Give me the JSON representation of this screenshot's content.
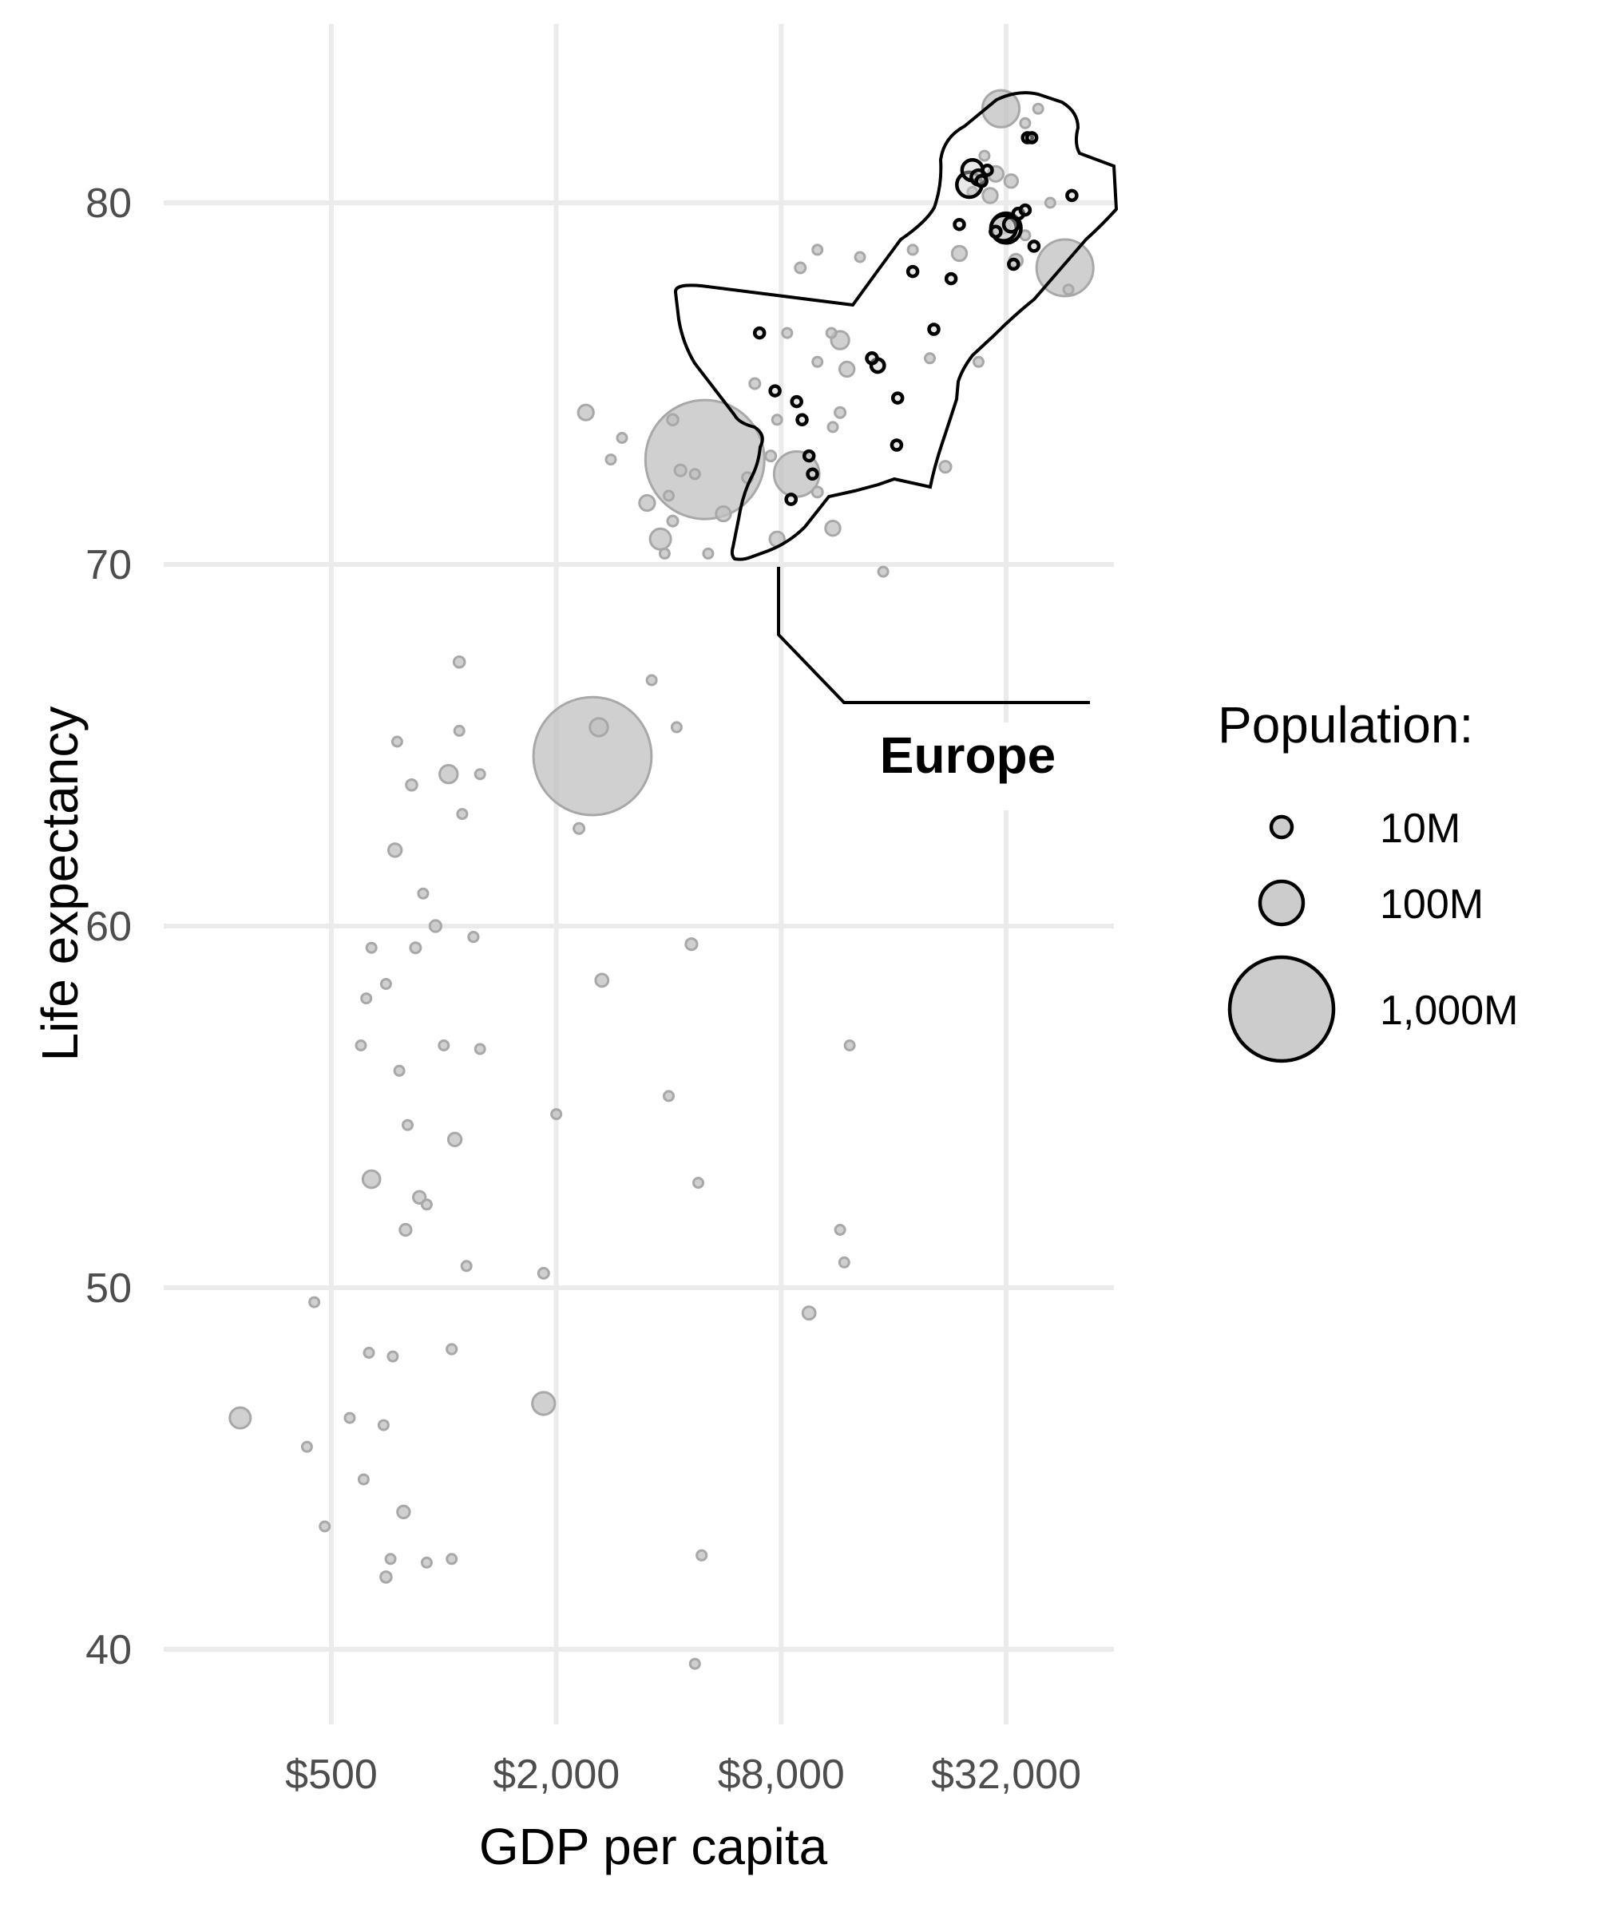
{
  "chart_data": {
    "type": "scatter",
    "xlabel": "GDP per capita",
    "ylabel": "Life expectancy",
    "x_scale": "log2",
    "xlim": [
      210,
      65000
    ],
    "ylim": [
      37.5,
      84.5
    ],
    "x_ticks": [
      500,
      2000,
      8000,
      32000
    ],
    "x_tick_labels": [
      "$500",
      "$2,000",
      "$8,000",
      "$32,000"
    ],
    "y_ticks": [
      40,
      50,
      60,
      70,
      80
    ],
    "y_tick_labels": [
      "40",
      "50",
      "60",
      "70",
      "80"
    ],
    "grid": true,
    "size_legend": {
      "title": "Population:",
      "entries": [
        {
          "label": "10M",
          "value": 10
        },
        {
          "label": "100M",
          "value": 100
        },
        {
          "label": "1,000M",
          "value": 1000
        }
      ]
    },
    "annotation": {
      "label": "Europe"
    },
    "colors": {
      "highlight_stroke": "#000000",
      "other_fill": "#c0c0c0",
      "grid": "#ebebeb"
    },
    "size_unit": "population_millions",
    "series": [
      {
        "highlighted": false,
        "points": [
          [
            285,
            46.4,
            40
          ],
          [
            450,
            49.6,
            5
          ],
          [
            430,
            45.6,
            4
          ],
          [
            480,
            43.4,
            6
          ],
          [
            560,
            46.4,
            3
          ],
          [
            640,
            59.4,
            3
          ],
          [
            620,
            58.0,
            4
          ],
          [
            600,
            56.7,
            6
          ],
          [
            700,
            58.4,
            4
          ],
          [
            760,
            56.0,
            7
          ],
          [
            800,
            54.5,
            7
          ],
          [
            860,
            52.5,
            14
          ],
          [
            900,
            52.3,
            7
          ],
          [
            790,
            51.6,
            12
          ],
          [
            640,
            53.0,
            28
          ],
          [
            690,
            46.2,
            6
          ],
          [
            630,
            48.2,
            8
          ],
          [
            730,
            48.1,
            5
          ],
          [
            610,
            44.7,
            5
          ],
          [
            780,
            43.8,
            14
          ],
          [
            720,
            42.5,
            6
          ],
          [
            700,
            42.0,
            11
          ],
          [
            900,
            42.4,
            6
          ],
          [
            1050,
            42.5,
            3
          ],
          [
            1150,
            50.6,
            8
          ],
          [
            1050,
            48.3,
            9
          ],
          [
            1850,
            46.8,
            47
          ],
          [
            1850,
            50.4,
            10
          ],
          [
            1250,
            56.6,
            5
          ],
          [
            1070,
            54.1,
            16
          ],
          [
            1000,
            56.7,
            6
          ],
          [
            950,
            60.0,
            12
          ],
          [
            1200,
            59.7,
            9
          ],
          [
            840,
            59.4,
            10
          ],
          [
            880,
            60.9,
            7
          ],
          [
            740,
            62.1,
            16
          ],
          [
            820,
            63.9,
            11
          ],
          [
            1030,
            64.2,
            30
          ],
          [
            1120,
            63.1,
            8
          ],
          [
            1250,
            64.2,
            5
          ],
          [
            1100,
            65.4,
            3
          ],
          [
            750,
            65.1,
            3
          ],
          [
            1100,
            67.3,
            11
          ],
          [
            2500,
            64.7,
            1300
          ],
          [
            2600,
            65.5,
            30
          ],
          [
            2300,
            62.7,
            10
          ],
          [
            2650,
            58.5,
            15
          ],
          [
            3600,
            66.8,
            5
          ],
          [
            4200,
            65.5,
            8
          ],
          [
            2000,
            54.8,
            3
          ],
          [
            4000,
            55.3,
            5
          ],
          [
            4800,
            52.9,
            5
          ],
          [
            4600,
            59.5,
            12
          ],
          [
            4700,
            39.6,
            4
          ],
          [
            4900,
            42.6,
            9
          ],
          [
            9500,
            49.3,
            15
          ],
          [
            12200,
            56.7,
            3
          ],
          [
            11500,
            51.6,
            3
          ],
          [
            11800,
            50.7,
            4
          ],
          [
            15000,
            69.8,
            3
          ],
          [
            2400,
            74.2,
            22
          ],
          [
            3000,
            73.5,
            6
          ],
          [
            2800,
            72.9,
            5
          ],
          [
            4100,
            74.0,
            11
          ],
          [
            5000,
            72.9,
            1320
          ],
          [
            4700,
            72.5,
            9
          ],
          [
            4300,
            72.6,
            12
          ],
          [
            4000,
            71.9,
            8
          ],
          [
            3500,
            71.7,
            22
          ],
          [
            4100,
            71.2,
            10
          ],
          [
            3800,
            70.7,
            40
          ],
          [
            3900,
            70.3,
            6
          ],
          [
            5100,
            70.3,
            5
          ],
          [
            5600,
            71.4,
            20
          ],
          [
            6500,
            72.4,
            10
          ],
          [
            7500,
            73.0,
            10
          ],
          [
            7800,
            74.0,
            6
          ],
          [
            6800,
            75.0,
            10
          ],
          [
            7800,
            70.7,
            20
          ],
          [
            8800,
            72.5,
            190
          ],
          [
            10000,
            72.0,
            10
          ],
          [
            11000,
            71.0,
            20
          ],
          [
            11000,
            73.8,
            8
          ],
          [
            11500,
            74.2,
            10
          ],
          [
            10000,
            75.6,
            5
          ],
          [
            8300,
            76.4,
            3
          ],
          [
            10900,
            76.4,
            5
          ],
          [
            11500,
            76.2,
            30
          ],
          [
            12000,
            75.4,
            20
          ],
          [
            9000,
            78.2,
            10
          ],
          [
            10000,
            78.7,
            4
          ],
          [
            13000,
            78.5,
            8
          ],
          [
            18000,
            78.7,
            4
          ],
          [
            24000,
            78.6,
            20
          ],
          [
            26000,
            80.3,
            4
          ],
          [
            20000,
            75.7,
            5
          ],
          [
            22000,
            72.7,
            12
          ],
          [
            27000,
            75.6,
            4
          ],
          [
            31000,
            82.6,
            127
          ],
          [
            36000,
            82.2,
            4
          ],
          [
            39000,
            82.6,
            5
          ],
          [
            28000,
            81.3,
            8
          ],
          [
            30000,
            80.8,
            22
          ],
          [
            33000,
            80.6,
            16
          ],
          [
            29000,
            80.2,
            20
          ],
          [
            31000,
            79.4,
            33
          ],
          [
            34000,
            78.4,
            16
          ],
          [
            36000,
            79.1,
            8
          ],
          [
            42000,
            80.0,
            5
          ],
          [
            46000,
            78.2,
            300
          ],
          [
            47000,
            77.6,
            4
          ]
        ]
      },
      {
        "highlighted": true,
        "points": [
          [
            7000,
            76.4,
            3
          ],
          [
            7700,
            74.8,
            3
          ],
          [
            8800,
            74.5,
            3
          ],
          [
            9100,
            74.0,
            4
          ],
          [
            9500,
            73.0,
            3
          ],
          [
            9700,
            72.5,
            5
          ],
          [
            8500,
            71.8,
            9
          ],
          [
            14000,
            75.7,
            10
          ],
          [
            14500,
            75.5,
            16
          ],
          [
            16400,
            74.6,
            4
          ],
          [
            16300,
            73.3,
            5
          ],
          [
            18000,
            78.1,
            6
          ],
          [
            20500,
            76.5,
            5
          ],
          [
            22800,
            77.9,
            3
          ],
          [
            24000,
            79.4,
            5
          ],
          [
            25500,
            80.5,
            58
          ],
          [
            26000,
            80.9,
            40
          ],
          [
            27500,
            80.6,
            10
          ],
          [
            28500,
            80.9,
            8
          ],
          [
            27000,
            80.7,
            20
          ],
          [
            30000,
            79.2,
            10
          ],
          [
            31500,
            79.3,
            60
          ],
          [
            32000,
            79.3,
            82
          ],
          [
            33000,
            79.4,
            20
          ],
          [
            34500,
            79.7,
            10
          ],
          [
            36000,
            79.8,
            8
          ],
          [
            33500,
            78.3,
            5
          ],
          [
            38000,
            78.8,
            4
          ],
          [
            36500,
            81.8,
            4
          ],
          [
            37500,
            81.8,
            3
          ],
          [
            48000,
            80.2,
            5
          ]
        ]
      }
    ]
  }
}
